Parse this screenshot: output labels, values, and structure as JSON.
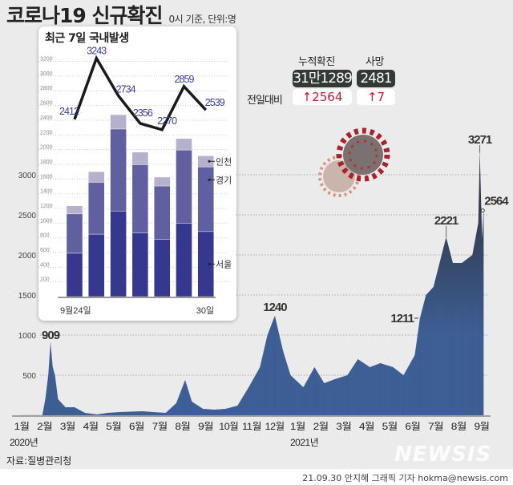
{
  "header": {
    "title": "코로나19 신규확진",
    "subtitle": "0시 기준, 단위:명"
  },
  "stats": {
    "cumulative_label": "누적확진",
    "cumulative_value": "31만1289",
    "deaths_label": "사망",
    "deaths_value": "2481",
    "diff_label": "전일대비",
    "cumulative_diff": "↑2564",
    "deaths_diff": "↑7",
    "diff_color": "#c0182d"
  },
  "chart_data": [
    {
      "type": "area",
      "title": "",
      "y_ticks": [
        500,
        1000,
        1500,
        2000,
        2500,
        3000
      ],
      "ylim": [
        0,
        3300
      ],
      "grid": true,
      "x_month_labels": [
        "1월",
        "2월",
        "3월",
        "4월",
        "5월",
        "6월",
        "7월",
        "8월",
        "9월",
        "10월",
        "11월",
        "12월",
        "1월",
        "2월",
        "3월",
        "4월",
        "5월",
        "6월",
        "7월",
        "8월",
        "9월"
      ],
      "year_labels": [
        "2020년",
        "2021년"
      ],
      "series": [
        {
          "points": [
            [
              "2020-01-20",
              1
            ],
            [
              "2020-02-18",
              1
            ],
            [
              "2020-02-22",
              200
            ],
            [
              "2020-02-26",
              500
            ],
            [
              "2020-02-29",
              909
            ],
            [
              "2020-03-03",
              600
            ],
            [
              "2020-03-06",
              500
            ],
            [
              "2020-03-10",
              200
            ],
            [
              "2020-03-20",
              100
            ],
            [
              "2020-04-01",
              100
            ],
            [
              "2020-04-15",
              30
            ],
            [
              "2020-05-01",
              10
            ],
            [
              "2020-05-15",
              30
            ],
            [
              "2020-06-01",
              40
            ],
            [
              "2020-06-15",
              45
            ],
            [
              "2020-07-01",
              50
            ],
            [
              "2020-07-15",
              40
            ],
            [
              "2020-08-01",
              30
            ],
            [
              "2020-08-15",
              150
            ],
            [
              "2020-08-27",
              440
            ],
            [
              "2020-09-05",
              170
            ],
            [
              "2020-09-20",
              80
            ],
            [
              "2020-10-05",
              70
            ],
            [
              "2020-10-20",
              80
            ],
            [
              "2020-11-05",
              120
            ],
            [
              "2020-11-20",
              350
            ],
            [
              "2020-12-05",
              600
            ],
            [
              "2020-12-15",
              1000
            ],
            [
              "2020-12-25",
              1240
            ],
            [
              "2021-01-05",
              800
            ],
            [
              "2021-01-15",
              500
            ],
            [
              "2021-02-01",
              350
            ],
            [
              "2021-02-16",
              600
            ],
            [
              "2021-03-01",
              400
            ],
            [
              "2021-03-15",
              450
            ],
            [
              "2021-04-01",
              500
            ],
            [
              "2021-04-15",
              700
            ],
            [
              "2021-05-01",
              600
            ],
            [
              "2021-05-15",
              650
            ],
            [
              "2021-06-01",
              600
            ],
            [
              "2021-06-15",
              500
            ],
            [
              "2021-06-30",
              750
            ],
            [
              "2021-07-07",
              1211
            ],
            [
              "2021-07-15",
              1500
            ],
            [
              "2021-07-25",
              1600
            ],
            [
              "2021-08-11",
              2221
            ],
            [
              "2021-08-20",
              1900
            ],
            [
              "2021-09-01",
              1900
            ],
            [
              "2021-09-15",
              2000
            ],
            [
              "2021-09-23",
              2400
            ],
            [
              "2021-09-25",
              3271
            ],
            [
              "2021-09-28",
              2200
            ],
            [
              "2021-09-30",
              2564
            ]
          ]
        }
      ],
      "annotations": [
        {
          "date": "2020-02-29",
          "label": "909"
        },
        {
          "date": "2020-12-25",
          "label": "1240"
        },
        {
          "date": "2021-07-07",
          "label": "1211"
        },
        {
          "date": "2021-08-11",
          "label": "2221"
        },
        {
          "date": "2021-09-25",
          "label": "3271"
        },
        {
          "date": "2021-09-30",
          "label": "2564"
        }
      ],
      "area_colors": {
        "bottom": "#3e5f95",
        "top": "#2b2b2b"
      }
    },
    {
      "type": "bar+line",
      "title": "최근 7일 국내발생",
      "y_ticks": [
        200,
        400,
        600,
        800,
        1000,
        1200,
        1400,
        1600,
        1800,
        2000,
        2200,
        2400,
        2600,
        2800,
        3000,
        3200
      ],
      "ylim": [
        0,
        3300
      ],
      "categories": [
        "9월24일",
        "",
        "",
        "",
        "",
        "",
        "30일"
      ],
      "series": [
        {
          "name": "서울",
          "values": [
            590,
            850,
            1165,
            865,
            780,
            995,
            885
          ],
          "color": "#36378f"
        },
        {
          "name": "경기",
          "values": [
            535,
            705,
            1115,
            930,
            725,
            1000,
            880
          ],
          "color": "#6060a0"
        },
        {
          "name": "인천",
          "values": [
            110,
            145,
            195,
            170,
            120,
            155,
            150
          ],
          "color": "#b5b0cc"
        }
      ],
      "line": {
        "values": [
          2412,
          3243,
          2734,
          2356,
          2270,
          2859,
          2539
        ],
        "color": "#1a1a1a",
        "label_color": "#3b3b9a"
      }
    }
  ],
  "footer": {
    "source": "자료:질병관리청",
    "credit": "21.09.30 안지혜 그래픽 기자 hokma@newsis.com",
    "watermark": "NEWSIS"
  }
}
